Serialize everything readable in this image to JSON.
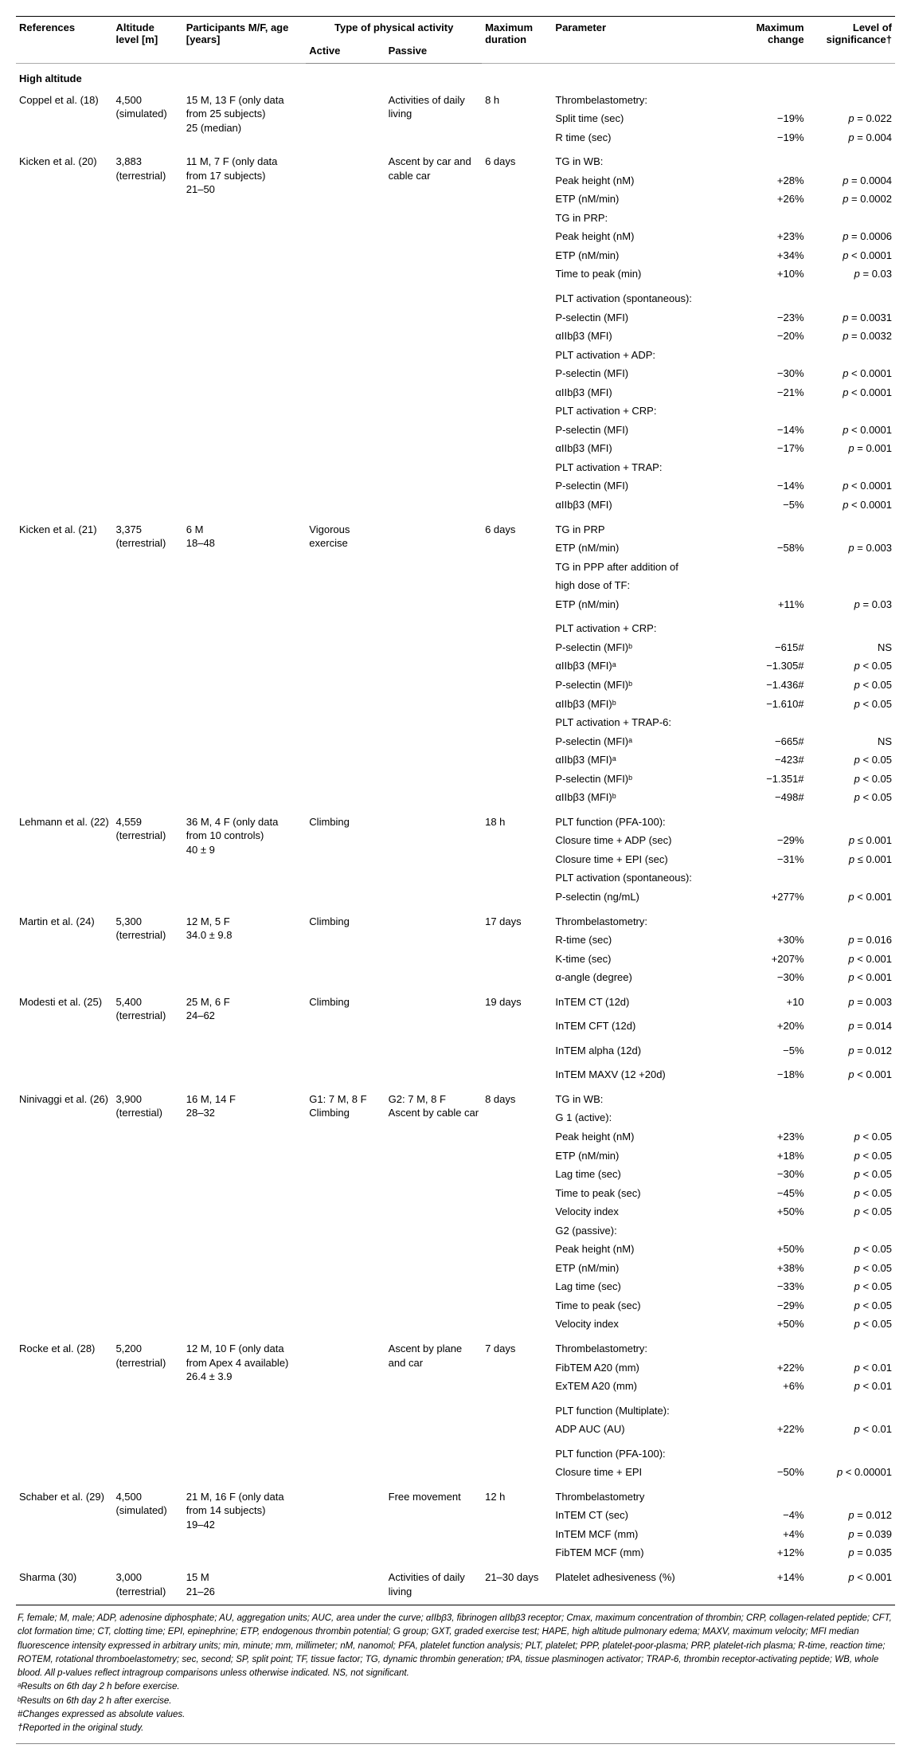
{
  "columns": {
    "references": "References",
    "altitude": "Altitude level [m]",
    "participants": "Participants M/F, age [years]",
    "activity_type": "Type of physical activity",
    "active": "Active",
    "passive": "Passive",
    "max_duration": "Maximum duration",
    "parameter": "Parameter",
    "max_change": "Maximum change",
    "significance": "Level of significance†"
  },
  "section": "High altitude",
  "studies": [
    {
      "ref": "Coppel et al. (18)",
      "alt": [
        "4,500",
        "(simulated)"
      ],
      "participants": [
        "15 M, 13 F (only data",
        "from 25 subjects)",
        "25 (median)"
      ],
      "active": "",
      "passive": "Activities of daily living",
      "duration": "8 h",
      "params": [
        {
          "p": "Thrombelastometry:",
          "chg": "",
          "sig": ""
        },
        {
          "p": "Split time (sec)",
          "chg": "−19%",
          "sig": "p = 0.022"
        },
        {
          "p": "R time (sec)",
          "chg": "−19%",
          "sig": "p = 0.004"
        }
      ]
    },
    {
      "ref": "Kicken et al. (20)",
      "alt": [
        "3,883",
        "(terrestrial)"
      ],
      "participants": [
        "11 M, 7 F (only data",
        "from 17 subjects)",
        "21–50"
      ],
      "active": "",
      "passive": "Ascent by car and cable car",
      "duration": "6 days",
      "params": [
        {
          "p": "TG in WB:",
          "chg": "",
          "sig": ""
        },
        {
          "p": "Peak height (nM)",
          "chg": "+28%",
          "sig": "p = 0.0004"
        },
        {
          "p": "ETP (nM/min)",
          "chg": "+26%",
          "sig": "p = 0.0002"
        },
        {
          "p": "TG in PRP:",
          "chg": "",
          "sig": ""
        },
        {
          "p": "Peak height (nM)",
          "chg": "+23%",
          "sig": "p = 0.0006"
        },
        {
          "p": "ETP (nM/min)",
          "chg": "+34%",
          "sig": "p < 0.0001"
        },
        {
          "p": "Time to peak (min)",
          "chg": "+10%",
          "sig": "p = 0.03"
        },
        {
          "p": "PLT activation (spontaneous):",
          "chg": "",
          "sig": "",
          "sep": true
        },
        {
          "p": "P-selectin (MFI)",
          "chg": "−23%",
          "sig": "p = 0.0031"
        },
        {
          "p": "αIIbβ3 (MFI)",
          "chg": "−20%",
          "sig": "p = 0.0032"
        },
        {
          "p": "PLT activation + ADP:",
          "chg": "",
          "sig": ""
        },
        {
          "p": "P-selectin (MFI)",
          "chg": "−30%",
          "sig": "p < 0.0001"
        },
        {
          "p": "αIIbβ3 (MFI)",
          "chg": "−21%",
          "sig": "p < 0.0001"
        },
        {
          "p": "PLT activation + CRP:",
          "chg": "",
          "sig": ""
        },
        {
          "p": "P-selectin (MFI)",
          "chg": "−14%",
          "sig": "p < 0.0001"
        },
        {
          "p": "αIIbβ3 (MFI)",
          "chg": "−17%",
          "sig": "p = 0.001"
        },
        {
          "p": "PLT activation + TRAP:",
          "chg": "",
          "sig": ""
        },
        {
          "p": "P-selectin (MFI)",
          "chg": "−14%",
          "sig": "p < 0.0001"
        },
        {
          "p": "αIIbβ3 (MFI)",
          "chg": "−5%",
          "sig": "p < 0.0001"
        }
      ]
    },
    {
      "ref": "Kicken et al. (21)",
      "alt": [
        "3,375",
        "(terrestrial)"
      ],
      "participants": [
        "6 M",
        "18–48"
      ],
      "active": "Vigorous exercise",
      "passive": "",
      "duration": "6 days",
      "params": [
        {
          "p": "TG in PRP",
          "chg": "",
          "sig": ""
        },
        {
          "p": "ETP (nM/min)",
          "chg": "−58%",
          "sig": "p = 0.003"
        },
        {
          "p": "TG in PPP after addition of",
          "chg": "",
          "sig": ""
        },
        {
          "p": "high dose of TF:",
          "chg": "",
          "sig": ""
        },
        {
          "p": "ETP (nM/min)",
          "chg": "+11%",
          "sig": "p = 0.03"
        },
        {
          "p": "PLT activation + CRP:",
          "chg": "",
          "sig": "",
          "sep": true
        },
        {
          "p": "P-selectin (MFI)ᵇ",
          "chg": "−615#",
          "sig": "NS",
          "sig_plain": true
        },
        {
          "p": "αIIbβ3 (MFI)ᵃ",
          "chg": "−1.305#",
          "sig": "p < 0.05"
        },
        {
          "p": "P-selectin (MFI)ᵇ",
          "chg": "−1.436#",
          "sig": "p < 0.05"
        },
        {
          "p": "αIIbβ3 (MFI)ᵇ",
          "chg": "−1.610#",
          "sig": "p < 0.05"
        },
        {
          "p": "PLT activation + TRAP-6:",
          "chg": "",
          "sig": ""
        },
        {
          "p": "P-selectin (MFI)ᵃ",
          "chg": "−665#",
          "sig": "NS",
          "sig_plain": true
        },
        {
          "p": "αIIbβ3 (MFI)ᵃ",
          "chg": "−423#",
          "sig": "p < 0.05"
        },
        {
          "p": "P-selectin (MFI)ᵇ",
          "chg": "−1.351#",
          "sig": "p < 0.05"
        },
        {
          "p": "αIIbβ3 (MFI)ᵇ",
          "chg": "−498#",
          "sig": "p < 0.05"
        }
      ]
    },
    {
      "ref": "Lehmann et al. (22)",
      "alt": [
        "4,559",
        "(terrestrial)"
      ],
      "participants": [
        "36 M, 4 F (only data",
        "from 10 controls)",
        "40 ± 9"
      ],
      "active": "Climbing",
      "passive": "",
      "duration": "18 h",
      "params": [
        {
          "p": "PLT function (PFA-100):",
          "chg": "",
          "sig": ""
        },
        {
          "p": "Closure time + ADP (sec)",
          "chg": "−29%",
          "sig": "p ≤ 0.001"
        },
        {
          "p": "Closure time + EPI (sec)",
          "chg": "−31%",
          "sig": "p ≤ 0.001"
        },
        {
          "p": "PLT activation (spontaneous):",
          "chg": "",
          "sig": ""
        },
        {
          "p": "P-selectin (ng/mL)",
          "chg": "+277%",
          "sig": "p < 0.001"
        }
      ]
    },
    {
      "ref": "Martin et al. (24)",
      "alt": [
        "5,300",
        "(terrestrial)"
      ],
      "participants": [
        "12 M, 5 F",
        "34.0 ± 9.8"
      ],
      "active": "Climbing",
      "passive": "",
      "duration": "17 days",
      "params": [
        {
          "p": "Thrombelastometry:",
          "chg": "",
          "sig": ""
        },
        {
          "p": "R-time (sec)",
          "chg": "+30%",
          "sig": "p = 0.016"
        },
        {
          "p": "K-time (sec)",
          "chg": "+207%",
          "sig": "p < 0.001"
        },
        {
          "p": "α-angle (degree)",
          "chg": "−30%",
          "sig": "p < 0.001"
        }
      ]
    },
    {
      "ref": "Modesti et al. (25)",
      "alt": [
        "5,400",
        "(terrestrial)"
      ],
      "participants": [
        "25 M, 6 F",
        "24–62"
      ],
      "active": "Climbing",
      "passive": "",
      "duration": "19 days",
      "params": [
        {
          "p": "InTEM CT (12d)",
          "chg": "+10",
          "sig": "p = 0.003"
        },
        {
          "p": "InTEM CFT (12d)",
          "chg": "+20%",
          "sig": "p = 0.014",
          "sep": true
        },
        {
          "p": "InTEM alpha (12d)",
          "chg": "−5%",
          "sig": "p = 0.012",
          "sep": true
        },
        {
          "p": "InTEM MAXV (12 +20d)",
          "chg": "−18%",
          "sig": "p < 0.001",
          "sep": true
        }
      ]
    },
    {
      "ref": "Ninivaggi et al. (26)",
      "alt": [
        "3,900",
        "(terrestial)"
      ],
      "participants": [
        "16 M, 14 F",
        "28–32"
      ],
      "active": "G1: 7 M, 8 F Climbing",
      "passive": "G2: 7 M, 8 F Ascent by cable car",
      "duration": "8 days",
      "params": [
        {
          "p": "TG in WB:",
          "chg": "",
          "sig": ""
        },
        {
          "p": "G 1 (active):",
          "chg": "",
          "sig": ""
        },
        {
          "p": "Peak height (nM)",
          "chg": "+23%",
          "sig": "p < 0.05"
        },
        {
          "p": "ETP (nM/min)",
          "chg": "+18%",
          "sig": "p < 0.05"
        },
        {
          "p": "Lag time (sec)",
          "chg": "−30%",
          "sig": "p < 0.05"
        },
        {
          "p": "Time to peak (sec)",
          "chg": "−45%",
          "sig": "p < 0.05"
        },
        {
          "p": "Velocity index",
          "chg": "+50%",
          "sig": "p < 0.05"
        },
        {
          "p": "G2 (passive):",
          "chg": "",
          "sig": ""
        },
        {
          "p": "Peak height (nM)",
          "chg": "+50%",
          "sig": "p < 0.05"
        },
        {
          "p": "ETP (nM/min)",
          "chg": "+38%",
          "sig": "p < 0.05"
        },
        {
          "p": "Lag time (sec)",
          "chg": "−33%",
          "sig": "p < 0.05"
        },
        {
          "p": "Time to peak (sec)",
          "chg": "−29%",
          "sig": "p < 0.05"
        },
        {
          "p": "Velocity index",
          "chg": "+50%",
          "sig": "p < 0.05"
        }
      ]
    },
    {
      "ref": "Rocke et al. (28)",
      "alt": [
        "5,200",
        "(terrestrial)"
      ],
      "participants": [
        "12 M, 10 F (only data",
        "from Apex 4 available)",
        "26.4 ± 3.9"
      ],
      "active": "",
      "passive": "Ascent by plane and car",
      "duration": "7 days",
      "params": [
        {
          "p": "Thrombelastometry:",
          "chg": "",
          "sig": ""
        },
        {
          "p": "FibTEM A20 (mm)",
          "chg": "+22%",
          "sig": "p < 0.01"
        },
        {
          "p": "ExTEM A20 (mm)",
          "chg": "+6%",
          "sig": "p < 0.01"
        },
        {
          "p": "PLT function (Multiplate):",
          "chg": "",
          "sig": "",
          "sep": true
        },
        {
          "p": "ADP AUC (AU)",
          "chg": "+22%",
          "sig": "p < 0.01"
        },
        {
          "p": "PLT function (PFA-100):",
          "chg": "",
          "sig": "",
          "sep": true
        },
        {
          "p": "Closure time + EPI",
          "chg": "−50%",
          "sig": "p < 0.00001"
        }
      ]
    },
    {
      "ref": "Schaber et al. (29)",
      "alt": [
        "4,500",
        "(simulated)"
      ],
      "participants": [
        "21 M, 16 F (only data",
        "from 14 subjects)",
        "19–42"
      ],
      "active": "",
      "passive": "Free movement",
      "duration": "12 h",
      "params": [
        {
          "p": "Thrombelastometry",
          "chg": "",
          "sig": ""
        },
        {
          "p": "InTEM CT (sec)",
          "chg": "−4%",
          "sig": "p = 0.012"
        },
        {
          "p": "InTEM MCF (mm)",
          "chg": "+4%",
          "sig": "p = 0.039"
        },
        {
          "p": "FibTEM MCF (mm)",
          "chg": "+12%",
          "sig": "p = 0.035"
        }
      ]
    },
    {
      "ref": "Sharma (30)",
      "alt": [
        "3,000",
        "(terrestrial)"
      ],
      "participants": [
        "15 M",
        "21–26"
      ],
      "active": "",
      "passive": "Activities of daily living",
      "duration": "21–30 days",
      "params": [
        {
          "p": "Platelet adhesiveness (%)",
          "chg": "+14%",
          "sig": "p < 0.001"
        }
      ]
    }
  ],
  "footnotes": [
    "F, female; M, male; ADP, adenosine diphosphate; AU, aggregation units; AUC, area under the curve; αIIbβ3, fibrinogen αIIbβ3 receptor; Cmax, maximum concentration of thrombin; CRP, collagen-related peptide; CFT, clot formation time; CT, clotting time; EPI, epinephrine; ETP, endogenous thrombin potential; G group; GXT, graded exercise test; HAPE, high altitude pulmonary edema; MAXV, maximum velocity; MFI median fluorescence intensity expressed in arbitrary units; min, minute; mm, millimeter; nM, nanomol; PFA, platelet function analysis; PLT, platelet; PPP, platelet-poor-plasma; PRP, platelet-rich plasma; R-time, reaction time; ROTEM, rotational thromboelastometry; sec, second; SP, split point; TF, tissue factor; TG, dynamic thrombin generation; tPA, tissue plasminogen activator; TRAP-6, thrombin receptor-activating peptide; WB, whole blood. All p-values reflect intragroup comparisons unless otherwise indicated. NS, not significant.",
    "ᵃResults on 6th day 2 h before exercise.",
    "ᵇResults on 6th day 2 h after exercise.",
    "#Changes expressed as absolute values.",
    "†Reported in the original study."
  ]
}
